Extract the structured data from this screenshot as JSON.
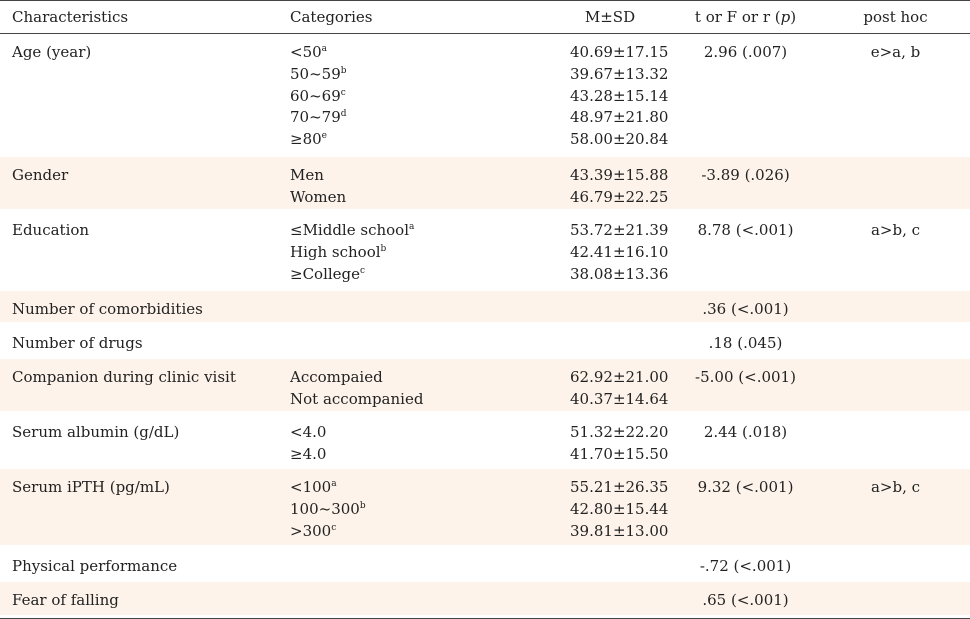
{
  "headers": {
    "characteristics": "Characteristics",
    "categories": "Categories",
    "msd": "M±SD",
    "test_prefix": "t or F or r (",
    "test_p": "p",
    "test_suffix": ")",
    "posthoc": "post hoc"
  },
  "rows": [
    {
      "characteristic": "Age (year)",
      "categories": [
        {
          "text": "<50",
          "sup": "a"
        },
        {
          "text": "50~59",
          "sup": "b"
        },
        {
          "text": "60~69",
          "sup": "c"
        },
        {
          "text": "70~79",
          "sup": "d"
        },
        {
          "text": "≥80",
          "sup": "e"
        }
      ],
      "msd": [
        "40.69±17.15",
        "39.67±13.32",
        "43.28±15.14",
        "48.97±21.80",
        "58.00±20.84"
      ],
      "test": "2.96 (.007)",
      "posthoc": "e>a, b"
    },
    {
      "characteristic": "Gender",
      "categories": [
        {
          "text": "Men",
          "sup": ""
        },
        {
          "text": "Women",
          "sup": ""
        }
      ],
      "msd": [
        "43.39±15.88",
        "46.79±22.25"
      ],
      "test": "-3.89 (.026)",
      "posthoc": ""
    },
    {
      "characteristic": "Education",
      "categories": [
        {
          "text": "≤Middle school",
          "sup": "a"
        },
        {
          "text": "High school",
          "sup": "b"
        },
        {
          "text": "≥College",
          "sup": "c"
        }
      ],
      "msd": [
        "53.72±21.39",
        "42.41±16.10",
        "38.08±13.36"
      ],
      "test": "8.78 (<.001)",
      "posthoc": "a>b, c"
    },
    {
      "characteristic": "Number of comorbidities",
      "categories": [],
      "msd": [],
      "test": ".36 (<.001)",
      "posthoc": ""
    },
    {
      "characteristic": "Number of drugs",
      "categories": [],
      "msd": [],
      "test": ".18 (.045)",
      "posthoc": ""
    },
    {
      "characteristic": "Companion during clinic visit",
      "categories": [
        {
          "text": "Accompaied",
          "sup": ""
        },
        {
          "text": "Not accompanied",
          "sup": ""
        }
      ],
      "msd": [
        "62.92±21.00",
        "40.37±14.64"
      ],
      "test": "-5.00 (<.001)",
      "posthoc": ""
    },
    {
      "characteristic": "Serum albumin (g/dL)",
      "categories": [
        {
          "text": "<4.0",
          "sup": ""
        },
        {
          "text": "≥4.0",
          "sup": ""
        }
      ],
      "msd": [
        "51.32±22.20",
        "41.70±15.50"
      ],
      "test": "2.44 (.018)",
      "posthoc": ""
    },
    {
      "characteristic": "Serum iPTH (pg/mL)",
      "categories": [
        {
          "text": "<100",
          "sup": "a"
        },
        {
          "text": "100~300",
          "sup": "b"
        },
        {
          "text": ">300",
          "sup": "c"
        }
      ],
      "msd": [
        "55.21±26.35",
        "42.80±15.44",
        "39.81±13.00"
      ],
      "test": "9.32 (<.001)",
      "posthoc": "a>b, c"
    },
    {
      "characteristic": "Physical performance",
      "categories": [],
      "msd": [],
      "test": "-.72 (<.001)",
      "posthoc": ""
    },
    {
      "characteristic": "Fear of falling",
      "categories": [],
      "msd": [],
      "test": ".65 (<.001)",
      "posthoc": ""
    }
  ]
}
